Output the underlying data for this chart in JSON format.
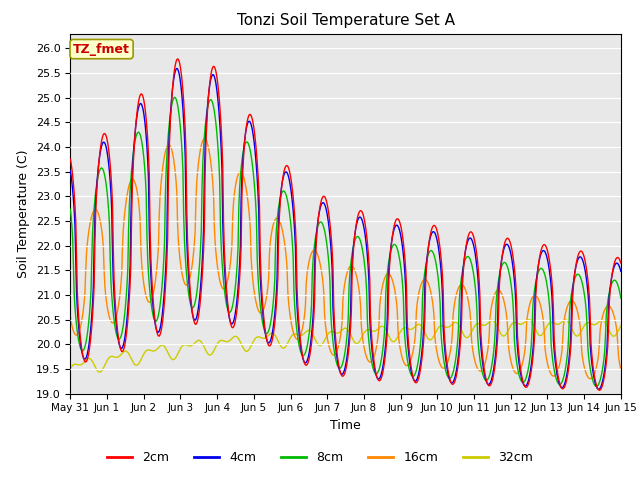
{
  "title": "Tonzi Soil Temperature Set A",
  "xlabel": "Time",
  "ylabel": "Soil Temperature (C)",
  "ylim": [
    19.0,
    26.3
  ],
  "yticks": [
    19.0,
    19.5,
    20.0,
    20.5,
    21.0,
    21.5,
    22.0,
    22.5,
    23.0,
    23.5,
    24.0,
    24.5,
    25.0,
    25.5,
    26.0
  ],
  "xtick_labels": [
    "May 31",
    "Jun 1",
    "Jun 2",
    "Jun 3",
    "Jun 4",
    "Jun 5",
    "Jun 6",
    "Jun 7",
    "Jun 8",
    "Jun 9",
    "Jun 10",
    "Jun 11",
    "Jun 12",
    "Jun 13",
    "Jun 14",
    "Jun 15"
  ],
  "series": {
    "2cm": {
      "color": "#ff0000",
      "linewidth": 1.0
    },
    "4cm": {
      "color": "#0000ee",
      "linewidth": 1.0
    },
    "8cm": {
      "color": "#00bb00",
      "linewidth": 1.0
    },
    "16cm": {
      "color": "#ff8800",
      "linewidth": 1.0
    },
    "32cm": {
      "color": "#cccc00",
      "linewidth": 1.0
    }
  },
  "annotation_text": "TZ_fmet",
  "annotation_color": "#cc0000",
  "annotation_bg": "#ffffcc",
  "plot_bg": "#e8e8e8",
  "fig_bg": "#ffffff",
  "n_days": 15
}
